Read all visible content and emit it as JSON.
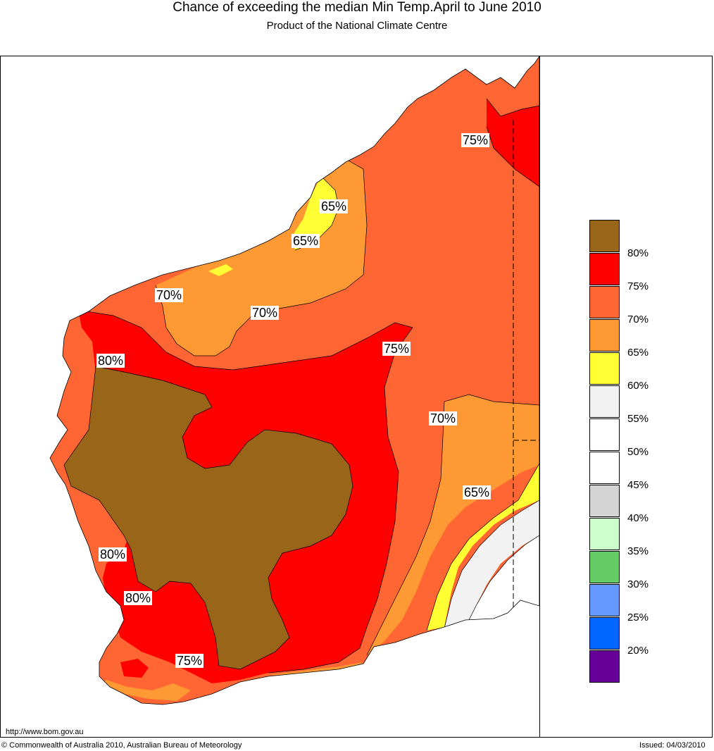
{
  "header": {
    "title": "Chance of exceeding the median Min Temp.April to June 2010",
    "subtitle": "Product of the National Climate Centre"
  },
  "map": {
    "region": "Western Australia",
    "contour_labels": [
      {
        "id": "wa-kimberley-75",
        "text": "75%"
      },
      {
        "id": "wa-pilbara-65a",
        "text": "65%"
      },
      {
        "id": "wa-pilbara-65b",
        "text": "65%"
      },
      {
        "id": "wa-west-70",
        "text": "70%"
      },
      {
        "id": "wa-central-70",
        "text": "70%"
      },
      {
        "id": "wa-midwest-80",
        "text": "80%"
      },
      {
        "id": "wa-central-75",
        "text": "75%"
      },
      {
        "id": "wa-east-70",
        "text": "70%"
      },
      {
        "id": "wa-southeast-65",
        "text": "65%"
      },
      {
        "id": "wa-southwest-80a",
        "text": "80%"
      },
      {
        "id": "wa-southwest-80b",
        "text": "80%"
      },
      {
        "id": "wa-south-75",
        "text": "75%"
      }
    ]
  },
  "legend": {
    "swatch_colors": [
      "#996619",
      "#ff0000",
      "#ff6633",
      "#ff9933",
      "#ffff33",
      "#f2f2f2",
      "#ffffff",
      "#ffffff",
      "#d4d4d4",
      "#ccffcc",
      "#66cc66",
      "#6699ff",
      "#0066ff",
      "#660099"
    ],
    "labels": [
      "80%",
      "75%",
      "70%",
      "65%",
      "60%",
      "55%",
      "50%",
      "45%",
      "40%",
      "35%",
      "30%",
      "25%",
      "20%"
    ]
  },
  "footer": {
    "url": "http://www.bom.gov.au",
    "copyright": "© Commonwealth of Australia 2010, Australian Bureau of Meteorology",
    "issued": "Issued: 04/03/2010"
  }
}
